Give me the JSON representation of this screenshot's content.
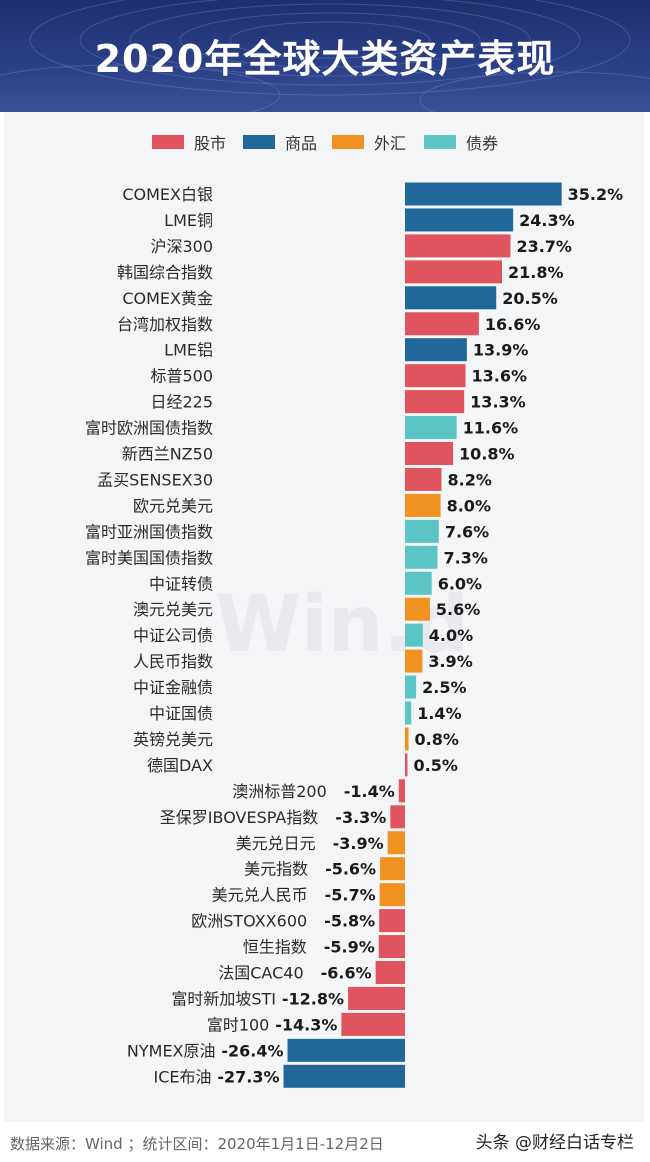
{
  "title": "2020年全球大类资产表现",
  "watermark": "Win.d",
  "footer": {
    "source": "数据来源：Wind ；统计区间：2020年1月1日-12月2日",
    "author": "头条 @财经白话专栏"
  },
  "colors": {
    "股市": "#e0545f",
    "商品": "#20689a",
    "外汇": "#ef9220",
    "债券": "#5bc5c5"
  },
  "chart_data": {
    "type": "bar",
    "orientation": "horizontal",
    "title": "2020年全球大类资产表现",
    "legend": [
      "股市",
      "商品",
      "外汇",
      "债券"
    ],
    "value_suffix": "%",
    "categories": [
      "COMEX白银",
      "LME铜",
      "沪深300",
      "韩国综合指数",
      "COMEX黄金",
      "台湾加权指数",
      "LME铝",
      "标普500",
      "日经225",
      "富时欧洲国债指数",
      "新西兰NZ50",
      "孟买SENSEX30",
      "欧元兑美元",
      "富时亚洲国债指数",
      "富时美国国债指数",
      "中证转债",
      "澳元兑美元",
      "中证公司债",
      "人民币指数",
      "中证金融债",
      "中证国债",
      "英镑兑美元",
      "德国DAX",
      "澳洲标普200",
      "圣保罗IBOVESPA指数",
      "美元兑日元",
      "美元指数",
      "美元兑人民币",
      "欧洲STOXX600",
      "恒生指数",
      "法国CAC40",
      "富时新加坡STI",
      "富时100",
      "NYMEX原油",
      "ICE布油"
    ],
    "values": [
      35.2,
      24.3,
      23.7,
      21.8,
      20.5,
      16.6,
      13.9,
      13.6,
      13.3,
      11.6,
      10.8,
      8.2,
      8.0,
      7.6,
      7.3,
      6.0,
      5.6,
      4.0,
      3.9,
      2.5,
      1.4,
      0.8,
      0.5,
      -1.4,
      -3.3,
      -3.9,
      -5.6,
      -5.7,
      -5.8,
      -5.9,
      -6.6,
      -12.8,
      -14.3,
      -26.4,
      -27.3
    ],
    "labels": [
      "35.2%",
      "24.3%",
      "23.7%",
      "21.8%",
      "20.5%",
      "16.6%",
      "13.9%",
      "13.6%",
      "13.3%",
      "11.6%",
      "10.8%",
      "8.2%",
      "8.0%",
      "7.6%",
      "7.3%",
      "6.0%",
      "5.6%",
      "4.0%",
      "3.9%",
      "2.5%",
      "1.4%",
      "0.8%",
      "0.5%",
      "-1.4%",
      "-3.3%",
      "-3.9%",
      "-5.6%",
      "-5.7%",
      "-5.8%",
      "-5.9%",
      "-6.6%",
      "-12.8%",
      "-14.3%",
      "-26.4%",
      "-27.3%"
    ],
    "groups": [
      "商品",
      "商品",
      "股市",
      "股市",
      "商品",
      "股市",
      "商品",
      "股市",
      "股市",
      "债券",
      "股市",
      "股市",
      "外汇",
      "债券",
      "债券",
      "债券",
      "外汇",
      "债券",
      "外汇",
      "债券",
      "债券",
      "外汇",
      "股市",
      "股市",
      "股市",
      "外汇",
      "外汇",
      "外汇",
      "股市",
      "股市",
      "股市",
      "股市",
      "股市",
      "商品",
      "商品"
    ]
  }
}
